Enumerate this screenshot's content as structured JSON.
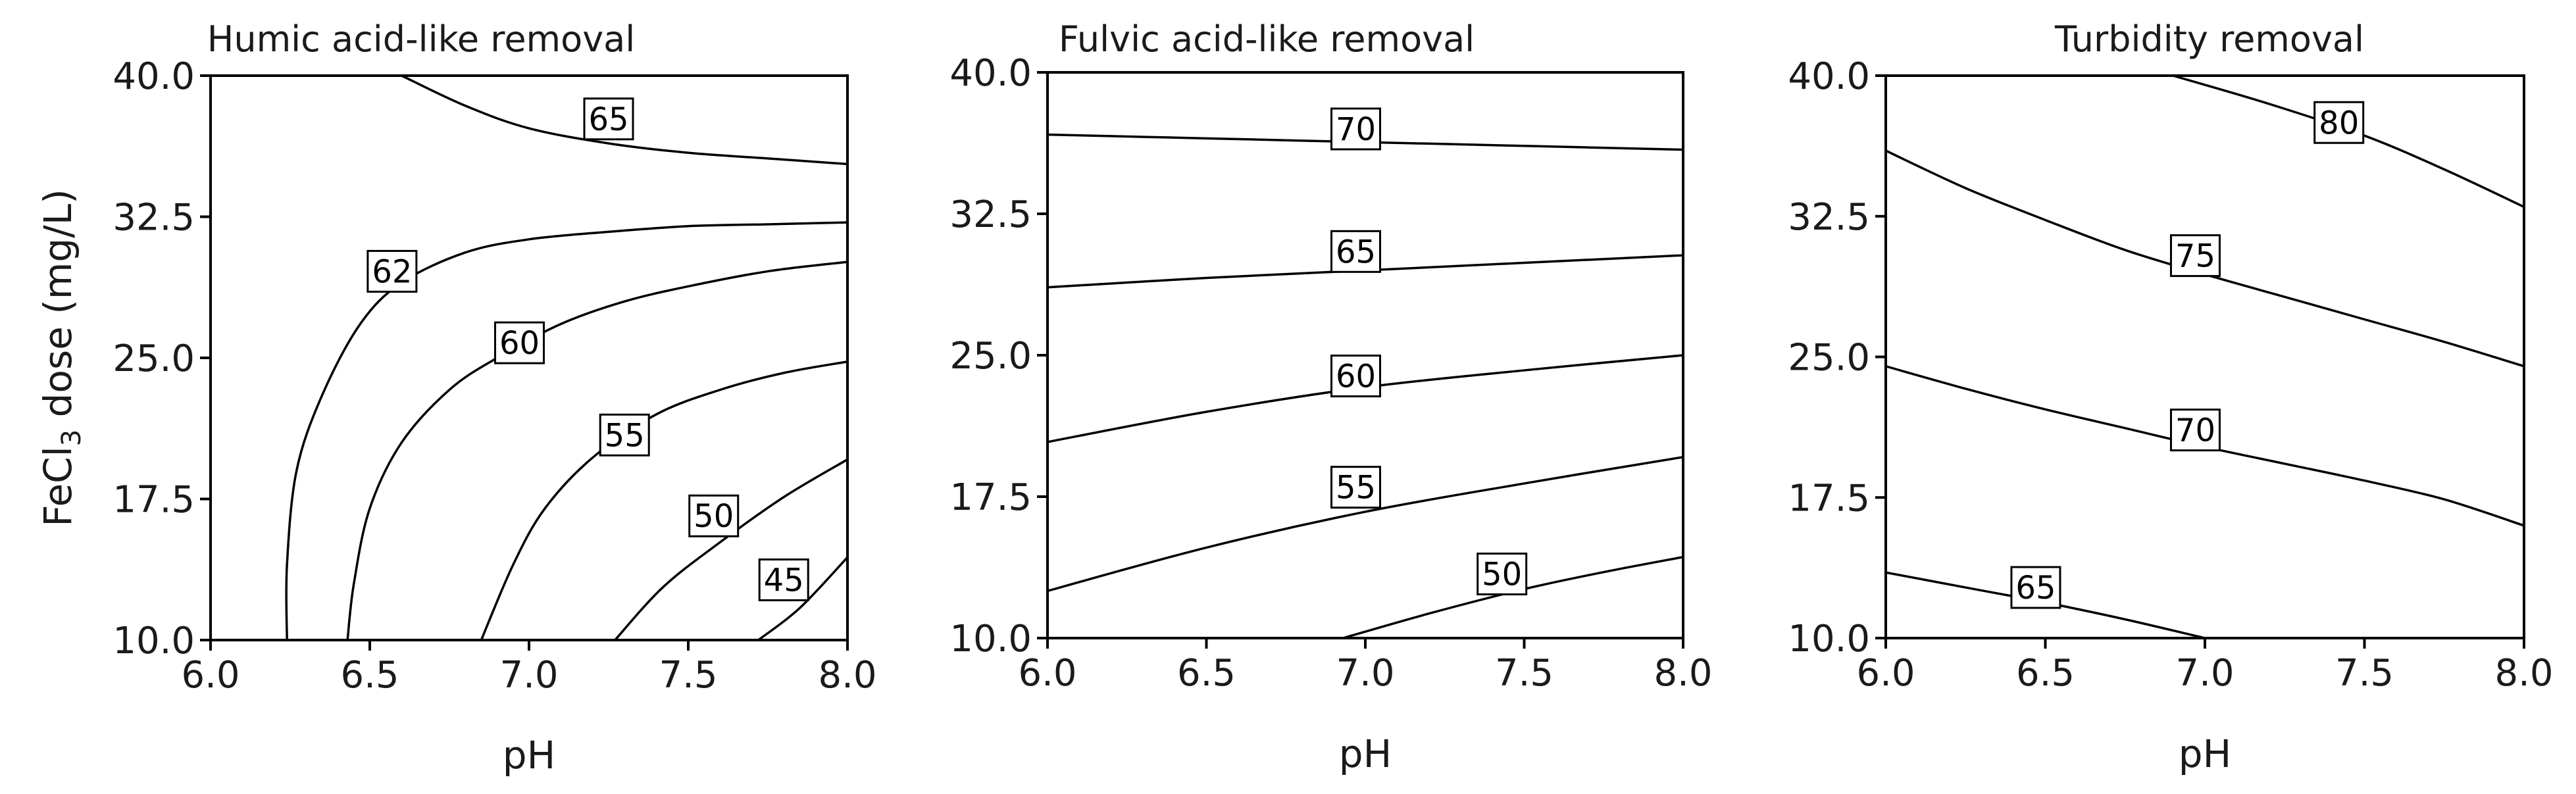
{
  "chart_data": [
    {
      "type": "contour",
      "title": "Humic acid-like removal",
      "xlabel": "pH",
      "ylabel": "FeCl3 dose (mg/L)",
      "xlim": [
        6.0,
        8.0
      ],
      "ylim": [
        10.0,
        40.0
      ],
      "xticks": [
        "6.0",
        "6.5",
        "7.0",
        "7.5",
        "8.0"
      ],
      "yticks": [
        "10.0",
        "17.5",
        "25.0",
        "32.5",
        "40.0"
      ],
      "contours": [
        {
          "level": "65",
          "label_at": [
            7.25,
            37.7
          ],
          "points": [
            [
              6.6,
              40.0
            ],
            [
              6.8,
              38.4
            ],
            [
              7.0,
              37.2
            ],
            [
              7.25,
              36.4
            ],
            [
              7.5,
              35.9
            ],
            [
              7.75,
              35.6
            ],
            [
              8.0,
              35.3
            ]
          ]
        },
        {
          "level": "62",
          "label_at": [
            6.57,
            29.6
          ],
          "points": [
            [
              6.24,
              10.0
            ],
            [
              6.24,
              14.0
            ],
            [
              6.27,
              19.0
            ],
            [
              6.35,
              23.0
            ],
            [
              6.47,
              26.8
            ],
            [
              6.6,
              29.0
            ],
            [
              6.8,
              30.6
            ],
            [
              7.0,
              31.3
            ],
            [
              7.25,
              31.7
            ],
            [
              7.5,
              32.0
            ],
            [
              7.75,
              32.1
            ],
            [
              8.0,
              32.2
            ]
          ]
        },
        {
          "level": "60",
          "label_at": [
            6.97,
            25.8
          ],
          "points": [
            [
              6.43,
              10.0
            ],
            [
              6.45,
              13.0
            ],
            [
              6.5,
              17.0
            ],
            [
              6.6,
              20.5
            ],
            [
              6.75,
              23.3
            ],
            [
              6.9,
              25.0
            ],
            [
              7.1,
              26.8
            ],
            [
              7.3,
              28.0
            ],
            [
              7.5,
              28.8
            ],
            [
              7.75,
              29.6
            ],
            [
              8.0,
              30.1
            ]
          ]
        },
        {
          "level": "55",
          "label_at": [
            7.3,
            20.9
          ],
          "points": [
            [
              6.85,
              10.0
            ],
            [
              6.95,
              14.0
            ],
            [
              7.05,
              17.0
            ],
            [
              7.2,
              19.7
            ],
            [
              7.4,
              22.0
            ],
            [
              7.6,
              23.3
            ],
            [
              7.8,
              24.2
            ],
            [
              8.0,
              24.8
            ]
          ]
        },
        {
          "level": "50",
          "label_at": [
            7.58,
            16.6
          ],
          "points": [
            [
              7.27,
              10.0
            ],
            [
              7.42,
              12.8
            ],
            [
              7.6,
              15.2
            ],
            [
              7.8,
              17.6
            ],
            [
              8.0,
              19.6
            ]
          ]
        },
        {
          "level": "45",
          "label_at": [
            7.8,
            13.2
          ],
          "points": [
            [
              7.72,
              10.0
            ],
            [
              7.85,
              11.7
            ],
            [
              8.0,
              14.4
            ]
          ]
        }
      ]
    },
    {
      "type": "contour",
      "title": "Fulvic acid-like removal",
      "xlabel": "pH",
      "ylabel": "",
      "xlim": [
        6.0,
        8.0
      ],
      "ylim": [
        10.0,
        40.0
      ],
      "xticks": [
        "6.0",
        "6.5",
        "7.0",
        "7.5",
        "8.0"
      ],
      "yticks": [
        "10.0",
        "17.5",
        "25.0",
        "32.5",
        "40.0"
      ],
      "contours": [
        {
          "level": "70",
          "label_at": [
            6.97,
            37.0
          ],
          "points": [
            [
              6.0,
              36.7
            ],
            [
              6.5,
              36.5
            ],
            [
              7.0,
              36.3
            ],
            [
              7.5,
              36.1
            ],
            [
              8.0,
              35.9
            ]
          ]
        },
        {
          "level": "65",
          "label_at": [
            6.97,
            30.5
          ],
          "points": [
            [
              6.0,
              28.6
            ],
            [
              6.5,
              29.1
            ],
            [
              7.0,
              29.5
            ],
            [
              7.5,
              29.9
            ],
            [
              8.0,
              30.3
            ]
          ]
        },
        {
          "level": "60",
          "label_at": [
            6.97,
            23.9
          ],
          "points": [
            [
              6.0,
              20.4
            ],
            [
              6.5,
              22.0
            ],
            [
              7.0,
              23.3
            ],
            [
              7.5,
              24.2
            ],
            [
              8.0,
              25.0
            ]
          ]
        },
        {
          "level": "55",
          "label_at": [
            6.97,
            18.0
          ],
          "points": [
            [
              6.0,
              12.5
            ],
            [
              6.5,
              14.8
            ],
            [
              7.0,
              16.7
            ],
            [
              7.5,
              18.2
            ],
            [
              8.0,
              19.6
            ]
          ]
        },
        {
          "level": "50",
          "label_at": [
            7.43,
            13.4
          ],
          "points": [
            [
              6.93,
              10.0
            ],
            [
              7.2,
              11.3
            ],
            [
              7.5,
              12.6
            ],
            [
              7.75,
              13.5
            ],
            [
              8.0,
              14.3
            ]
          ]
        }
      ]
    },
    {
      "type": "contour",
      "title": "Turbidity removal",
      "xlabel": "pH",
      "ylabel": "",
      "xlim": [
        6.0,
        8.0
      ],
      "ylim": [
        10.0,
        40.0
      ],
      "xticks": [
        "6.0",
        "6.5",
        "7.0",
        "7.5",
        "8.0"
      ],
      "yticks": [
        "10.0",
        "17.5",
        "25.0",
        "32.5",
        "40.0"
      ],
      "contours": [
        {
          "level": "80",
          "label_at": [
            7.42,
            37.5
          ],
          "points": [
            [
              6.9,
              40.0
            ],
            [
              7.2,
              38.5
            ],
            [
              7.5,
              36.8
            ],
            [
              7.75,
              35.0
            ],
            [
              8.0,
              33.0
            ]
          ]
        },
        {
          "level": "75",
          "label_at": [
            6.97,
            30.4
          ],
          "points": [
            [
              6.0,
              36.0
            ],
            [
              6.25,
              34.0
            ],
            [
              6.5,
              32.3
            ],
            [
              6.75,
              30.7
            ],
            [
              7.0,
              29.4
            ],
            [
              7.25,
              28.2
            ],
            [
              7.5,
              27.0
            ],
            [
              7.75,
              25.8
            ],
            [
              8.0,
              24.5
            ]
          ]
        },
        {
          "level": "70",
          "label_at": [
            6.97,
            21.1
          ],
          "points": [
            [
              6.0,
              24.5
            ],
            [
              6.25,
              23.3
            ],
            [
              6.5,
              22.2
            ],
            [
              6.75,
              21.2
            ],
            [
              7.0,
              20.2
            ],
            [
              7.25,
              19.3
            ],
            [
              7.5,
              18.4
            ],
            [
              7.75,
              17.4
            ],
            [
              8.0,
              16.0
            ]
          ]
        },
        {
          "level": "65",
          "label_at": [
            6.47,
            12.7
          ],
          "points": [
            [
              6.0,
              13.5
            ],
            [
              6.25,
              12.7
            ],
            [
              6.5,
              11.9
            ],
            [
              6.75,
              11.0
            ],
            [
              7.0,
              10.0
            ]
          ]
        }
      ]
    }
  ]
}
